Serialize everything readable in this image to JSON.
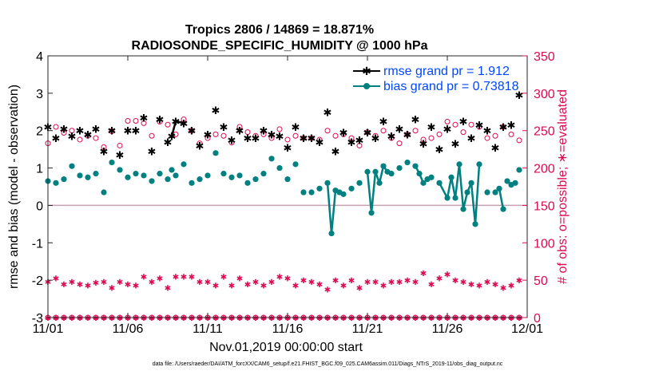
{
  "chart_data": {
    "type": "line",
    "title": "Tropics 2806 / 14869 = 18.871%",
    "subtitle": "RADIOSONDE_SPECIFIC_HUMIDITY @ 1000 hPa",
    "xlabel": "Nov.01,2019 00:00:00 start",
    "ylabel_left": "rmse and bias (model - observation)",
    "ylabel_right": "# of obs: o=possible; ∗=evaluated",
    "footnote": "data file: /Users/raeder/DAI/ATM_forcXX/CAM6_setup/f.e21.FHIST_BGC.f09_025.CAM6assim.011/Diags_NTrS_2019-11/obs_diag_output.nc",
    "xlim": [
      0,
      30
    ],
    "ylim_left": [
      -3,
      4
    ],
    "ylim_right": [
      0,
      350
    ],
    "x_ticks": [
      {
        "x": 0,
        "label": "11/01"
      },
      {
        "x": 5,
        "label": "11/06"
      },
      {
        "x": 10,
        "label": "11/11"
      },
      {
        "x": 15,
        "label": "11/16"
      },
      {
        "x": 20,
        "label": "11/21"
      },
      {
        "x": 25,
        "label": "11/26"
      },
      {
        "x": 30,
        "label": "12/01"
      }
    ],
    "y_ticks_left": [
      "-3",
      "-2",
      "-1",
      "0",
      "1",
      "2",
      "3",
      "4"
    ],
    "y_ticks_right": [
      "0",
      "50",
      "100",
      "150",
      "200",
      "250",
      "300",
      "350"
    ],
    "legend": [
      {
        "name": "rmse grand pr = 1.912",
        "color": "#000000"
      },
      {
        "name": "bias grand pr = 0.73818",
        "color": "#008080"
      }
    ],
    "colors": {
      "rmse": "#000000",
      "bias": "#008080",
      "obs": "#dc0a50",
      "zero_line": "#c8a0b4",
      "legend_text": "#0047ff"
    },
    "series": [
      {
        "name": "rmse",
        "x": [
          0,
          0.5,
          1,
          1.5,
          2,
          2.5,
          3,
          3.5,
          4,
          4.5,
          5,
          5.5,
          6,
          6.5,
          7,
          7.5,
          7.75,
          8,
          8.5,
          9,
          9.5,
          10,
          10.5,
          11,
          11.5,
          12,
          12.5,
          13,
          13.5,
          14,
          14.5,
          15,
          15.5,
          16,
          16.5,
          17,
          17.5,
          18,
          18.5,
          19,
          19.5,
          20,
          20.5,
          21,
          21.5,
          22,
          22.5,
          23,
          23.5,
          24,
          24.5,
          25,
          25.5,
          26,
          26.5,
          27,
          27.5,
          28,
          28.5,
          29,
          29.5
        ],
        "values": [
          2.1,
          1.8,
          2.05,
          1.85,
          2.0,
          1.9,
          2.05,
          1.45,
          2.0,
          1.35,
          2.0,
          2.0,
          2.35,
          1.45,
          2.3,
          1.7,
          1.85,
          2.25,
          2.2,
          2.0,
          1.6,
          1.9,
          2.55,
          2.1,
          1.75,
          2.0,
          1.8,
          1.8,
          2.0,
          1.9,
          1.85,
          1.55,
          2.1,
          1.8,
          1.8,
          1.7,
          2.5,
          1.45,
          1.95,
          1.7,
          1.75,
          1.95,
          1.8,
          2.25,
          1.85,
          2.05,
          1.9,
          2.3,
          1.65,
          2.1,
          1.5,
          2.05,
          1.65,
          2.25,
          1.8,
          2.15,
          2.0,
          1.55,
          2.1,
          2.15,
          2.95
        ],
        "connected_segments": [
          [
            16,
            18
          ]
        ]
      },
      {
        "name": "bias",
        "x": [
          0,
          0.5,
          1,
          1.5,
          2,
          2.5,
          3,
          3.5,
          4,
          4.5,
          5,
          5.5,
          6,
          6.5,
          7,
          7.5,
          7.75,
          8,
          8.5,
          9,
          9.5,
          10,
          10.5,
          11,
          11.5,
          12,
          12.5,
          13,
          13.5,
          14,
          14.5,
          15,
          15.5,
          16,
          16.5,
          17,
          17.5,
          17.75,
          18,
          18.25,
          18.5,
          19,
          19.5,
          20,
          20.25,
          20.5,
          20.75,
          21,
          21.25,
          21.5,
          22,
          22.5,
          23,
          23.25,
          23.5,
          23.75,
          24,
          24.5,
          25,
          25.25,
          25.5,
          25.75,
          26,
          26.25,
          26.5,
          26.75,
          27,
          27.5,
          28,
          28.25,
          28.5,
          28.75,
          29,
          29.25,
          29.5
        ],
        "values": [
          0.65,
          0.6,
          0.7,
          1.05,
          0.8,
          0.75,
          0.85,
          0.35,
          1.15,
          0.95,
          0.75,
          0.85,
          0.8,
          0.65,
          0.85,
          0.7,
          0.95,
          0.8,
          1.1,
          0.6,
          0.7,
          0.8,
          1.4,
          0.85,
          0.75,
          0.8,
          0.6,
          0.7,
          0.85,
          1.25,
          1.0,
          0.7,
          1.1,
          0.35,
          0.35,
          0.45,
          0.6,
          -0.75,
          0.4,
          0.35,
          0.3,
          0.45,
          0.6,
          0.9,
          -0.2,
          0.9,
          0.6,
          1.05,
          0.9,
          0.85,
          1.0,
          1.15,
          1.05,
          0.85,
          0.6,
          0.7,
          0.75,
          0.6,
          0.2,
          0.75,
          0.2,
          1.1,
          -0.1,
          0.35,
          0.6,
          -0.5,
          1.1,
          0.35,
          0.35,
          0.45,
          -0.1,
          0.65,
          0.55,
          0.6,
          0.95
        ],
        "connected_segments": [
          [
            36,
            40
          ],
          [
            43,
            48
          ],
          [
            52,
            54
          ],
          [
            57,
            66
          ],
          [
            69,
            70
          ],
          [
            71,
            73
          ]
        ]
      },
      {
        "name": "obs_possible",
        "axis": "right",
        "x": [
          0,
          0.5,
          1,
          1.5,
          2,
          2.5,
          3,
          3.5,
          4,
          4.5,
          5,
          5.5,
          6,
          6.5,
          7,
          7.5,
          8,
          8.5,
          9,
          9.5,
          10,
          10.5,
          11,
          11.5,
          12,
          12.5,
          13,
          13.5,
          14,
          14.5,
          15,
          15.5,
          16,
          16.5,
          17,
          17.5,
          18,
          18.5,
          19,
          19.5,
          20,
          20.5,
          21,
          21.5,
          22,
          22.5,
          23,
          23.5,
          24,
          24.5,
          25,
          25.5,
          26,
          26.5,
          27,
          27.5,
          28,
          28.5,
          29,
          29.5
        ],
        "values": [
          233,
          255,
          247,
          250,
          238,
          243,
          240,
          228,
          249,
          230,
          263,
          263,
          260,
          243,
          262,
          258,
          245,
          265,
          250,
          233,
          240,
          245,
          243,
          234,
          255,
          248,
          243,
          245,
          240,
          252,
          238,
          243,
          240,
          240,
          238,
          250,
          243,
          245,
          240,
          230,
          248,
          243,
          250,
          240,
          233,
          245,
          250,
          238,
          240,
          245,
          262,
          258,
          248,
          258,
          255,
          240,
          243,
          255,
          245,
          237
        ]
      },
      {
        "name": "obs_evaluated",
        "axis": "right",
        "x": [
          0,
          0.5,
          1,
          1.5,
          2,
          2.5,
          3,
          3.5,
          4,
          4.5,
          5,
          5.5,
          6,
          6.5,
          7,
          7.5,
          8,
          8.5,
          9,
          9.5,
          10,
          10.5,
          11,
          11.5,
          12,
          12.5,
          13,
          13.5,
          14,
          14.5,
          15,
          15.5,
          16,
          16.5,
          17,
          17.5,
          18,
          18.5,
          19,
          19.5,
          20,
          20.5,
          21,
          21.5,
          22,
          22.5,
          23,
          23.5,
          24,
          24.5,
          25,
          25.5,
          26,
          26.5,
          27,
          27.5,
          28,
          28.5,
          29,
          29.5
        ],
        "values": [
          48,
          53,
          45,
          48,
          45,
          43,
          47,
          48,
          40,
          48,
          45,
          43,
          55,
          48,
          53,
          40,
          55,
          55,
          55,
          48,
          48,
          43,
          55,
          43,
          53,
          45,
          48,
          43,
          48,
          55,
          53,
          43,
          50,
          48,
          45,
          38,
          50,
          43,
          50,
          40,
          48,
          48,
          43,
          48,
          48,
          50,
          48,
          60,
          45,
          53,
          58,
          50,
          48,
          45,
          43,
          48,
          45,
          40,
          43,
          50
        ]
      }
    ]
  }
}
